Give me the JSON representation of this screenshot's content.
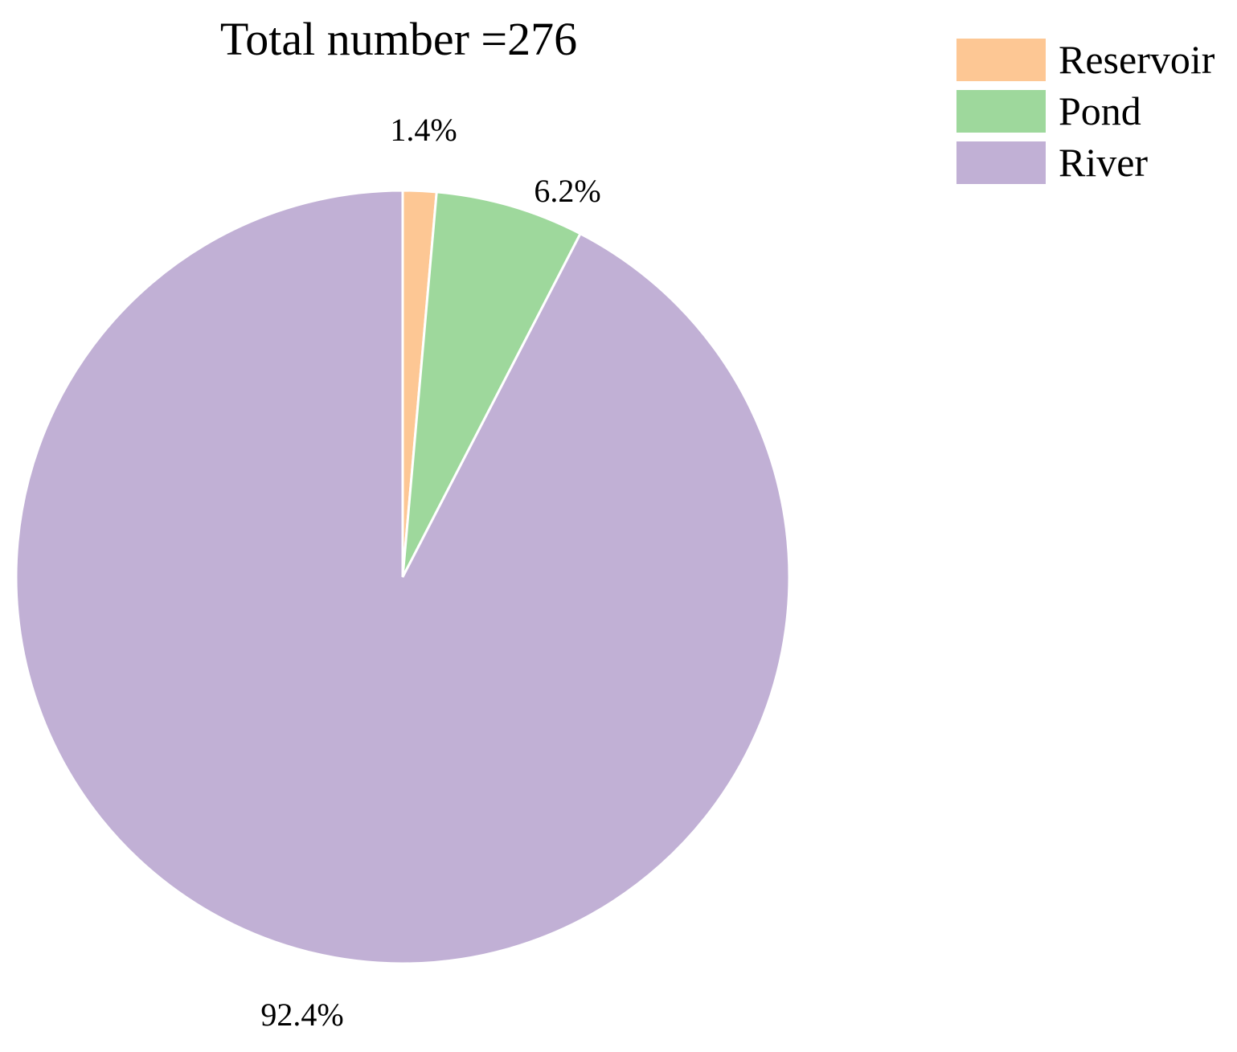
{
  "chart_data": {
    "type": "pie",
    "title": "Total number =276",
    "categories": [
      "Reservoir",
      "Pond",
      "River"
    ],
    "values": [
      1.4,
      6.2,
      92.4
    ],
    "labels": [
      "1.4%",
      "6.2%",
      "92.4%"
    ],
    "colors": [
      "#fdc794",
      "#9ed89c",
      "#c1b0d5"
    ],
    "start_angle": "12 o'clock",
    "direction": "clockwise",
    "legend": {
      "placement": "top-right",
      "entries": [
        "Reservoir",
        "Pond",
        "River"
      ]
    }
  }
}
